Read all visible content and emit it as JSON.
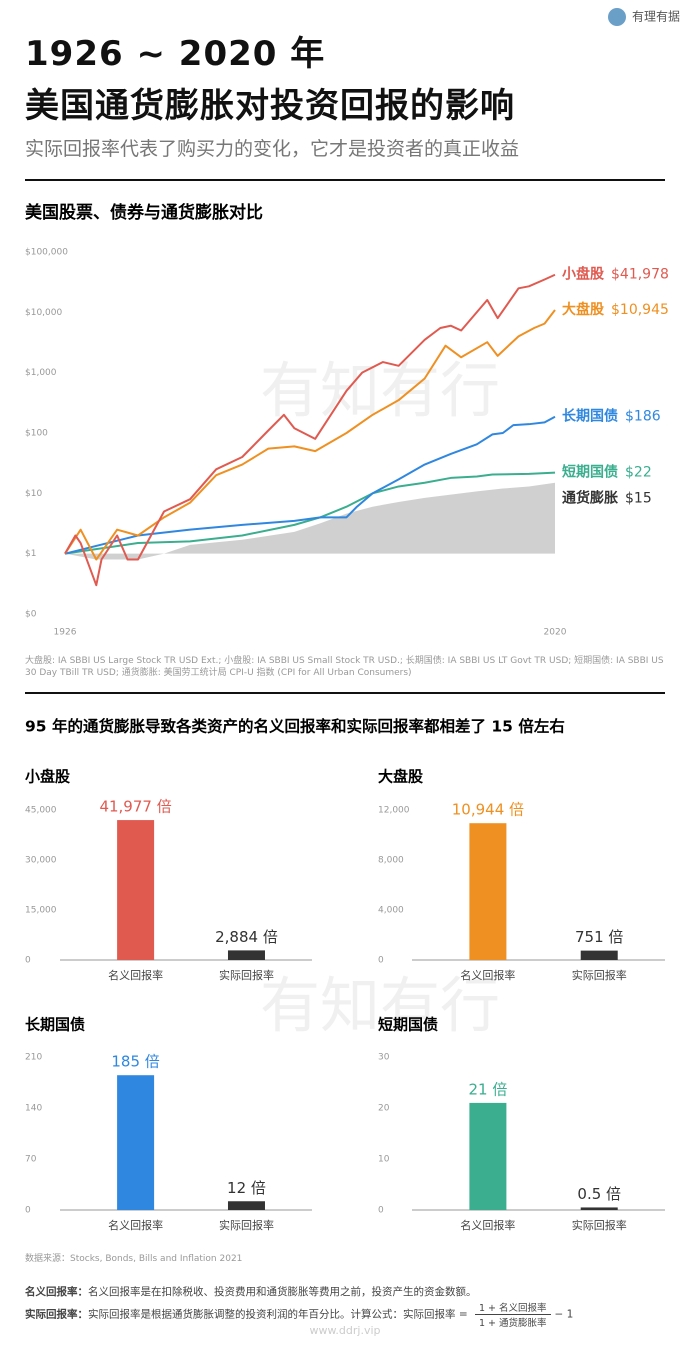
{
  "header": {
    "title_line1": "1926 ~ 2020 年",
    "title_line2": "美国通货膨胀对投资回报的影响",
    "subtitle": "实际回报率代表了购买力的变化，它才是投资者的真正收益",
    "logo": "有理有据"
  },
  "watermark": "有知有行",
  "chart_data": [
    {
      "type": "line",
      "title": "美国股票、债券与通货膨胀对比",
      "log_scale": true,
      "grid": false,
      "xlim": [
        1926,
        2020
      ],
      "xticks": [
        1926,
        2020
      ],
      "ylim": [
        0.1,
        100000
      ],
      "yticks": [
        {
          "value": 0.1,
          "label": "$0"
        },
        {
          "value": 1,
          "label": "$1"
        },
        {
          "value": 10,
          "label": "$10"
        },
        {
          "value": 100,
          "label": "$100"
        },
        {
          "value": 1000,
          "label": "$1,000"
        },
        {
          "value": 10000,
          "label": "$10,000"
        },
        {
          "value": 100000,
          "label": "$100,000"
        }
      ],
      "series": [
        {
          "name": "小盘股",
          "color": "#e05a50",
          "end_label": "$41,978",
          "x": [
            1926,
            1928,
            1929,
            1932,
            1933,
            1936,
            1938,
            1940,
            1945,
            1950,
            1955,
            1960,
            1965,
            1968,
            1970,
            1974,
            1980,
            1983,
            1987,
            1990,
            1995,
            1998,
            2000,
            2002,
            2007,
            2009,
            2013,
            2015,
            2018,
            2020
          ],
          "values": [
            1,
            2,
            1.5,
            0.3,
            0.8,
            2,
            0.8,
            0.8,
            5,
            8,
            25,
            40,
            110,
            200,
            120,
            80,
            500,
            1000,
            1500,
            1300,
            3500,
            5500,
            6000,
            5000,
            16000,
            8000,
            25000,
            27000,
            35000,
            41978
          ]
        },
        {
          "name": "大盘股",
          "color": "#ef9022",
          "end_label": "$10,945",
          "x": [
            1926,
            1929,
            1932,
            1936,
            1940,
            1945,
            1950,
            1955,
            1960,
            1965,
            1970,
            1974,
            1980,
            1985,
            1990,
            1995,
            1999,
            2002,
            2007,
            2009,
            2013,
            2016,
            2018,
            2020
          ],
          "values": [
            1,
            2.5,
            0.8,
            2.5,
            2,
            4,
            7,
            20,
            30,
            55,
            60,
            50,
            100,
            200,
            350,
            800,
            2800,
            1800,
            3200,
            1900,
            4000,
            5500,
            6500,
            10945
          ]
        },
        {
          "name": "长期国债",
          "color": "#2f87e0",
          "end_label": "$186",
          "x": [
            1926,
            1940,
            1950,
            1960,
            1970,
            1975,
            1980,
            1982,
            1985,
            1990,
            1995,
            2000,
            2005,
            2008,
            2010,
            2012,
            2015,
            2018,
            2020
          ],
          "values": [
            1,
            2,
            2.5,
            3,
            3.5,
            4,
            4,
            6,
            10,
            17,
            30,
            45,
            65,
            95,
            100,
            135,
            140,
            150,
            186
          ]
        },
        {
          "name": "短期国债",
          "color": "#3aae8e",
          "end_label": "$22",
          "x": [
            1926,
            1940,
            1950,
            1960,
            1970,
            1975,
            1980,
            1985,
            1990,
            1995,
            2000,
            2005,
            2008,
            2015,
            2020
          ],
          "values": [
            1,
            1.5,
            1.6,
            2,
            3,
            4,
            6,
            10,
            13,
            15,
            18,
            19,
            20.5,
            21,
            22
          ]
        },
        {
          "name": "通货膨胀",
          "color": "#d0d0d0",
          "area": true,
          "end_label": "$15",
          "x": [
            1926,
            1932,
            1940,
            1945,
            1950,
            1960,
            1970,
            1975,
            1980,
            1985,
            1990,
            1995,
            2000,
            2005,
            2010,
            2015,
            2020
          ],
          "values": [
            1,
            0.8,
            0.8,
            1,
            1.4,
            1.7,
            2.3,
            3.2,
            4.6,
            6,
            7.2,
            8.4,
            9.5,
            10.8,
            12,
            13,
            15
          ]
        }
      ],
      "note": "大盘股: IA SBBI US Large Stock TR USD Ext.; 小盘股: IA SBBI US Small Stock TR USD.; 长期国债: IA SBBI US LT Govt TR USD; 短期国债: IA SBBI US 30 Day TBill TR USD; 通货膨胀: 美国劳工统计局 CPI-U 指数 (CPI for All Urban Consumers)"
    },
    {
      "type": "bar",
      "title": "小盘股",
      "grid": false,
      "categories": [
        "名义回报率",
        "实际回报率"
      ],
      "values": [
        41977,
        2884
      ],
      "value_labels": [
        "41,977 倍",
        "2,884 倍"
      ],
      "colors": [
        "#e05a50",
        "#333333"
      ],
      "ylim": [
        0,
        45000
      ],
      "yticks": [
        0,
        {
          "value": 15000,
          "label": "15,000"
        },
        {
          "value": 30000,
          "label": "30,000"
        },
        {
          "value": 45000,
          "label": "45,000"
        }
      ]
    },
    {
      "type": "bar",
      "title": "大盘股",
      "grid": false,
      "categories": [
        "名义回报率",
        "实际回报率"
      ],
      "values": [
        10944,
        751
      ],
      "value_labels": [
        "10,944 倍",
        "751 倍"
      ],
      "colors": [
        "#ef9022",
        "#333333"
      ],
      "ylim": [
        0,
        12000
      ],
      "yticks": [
        0,
        {
          "value": 4000,
          "label": "4,000"
        },
        {
          "value": 8000,
          "label": "8,000"
        },
        {
          "value": 12000,
          "label": "12,000"
        }
      ]
    },
    {
      "type": "bar",
      "title": "长期国债",
      "grid": false,
      "categories": [
        "名义回报率",
        "实际回报率"
      ],
      "values": [
        185,
        12
      ],
      "value_labels": [
        "185 倍",
        "12 倍"
      ],
      "colors": [
        "#2f87e0",
        "#333333"
      ],
      "ylim": [
        0,
        210
      ],
      "yticks": [
        0,
        70,
        140,
        210
      ]
    },
    {
      "type": "bar",
      "title": "短期国债",
      "grid": false,
      "categories": [
        "名义回报率",
        "实际回报率"
      ],
      "values": [
        21,
        0.5
      ],
      "value_labels": [
        "21 倍",
        "0.5 倍"
      ],
      "colors": [
        "#3aae8e",
        "#333333"
      ],
      "ylim": [
        0,
        30
      ],
      "yticks": [
        0,
        10,
        20,
        30
      ]
    }
  ],
  "section_title": "95 年的通货膨胀导致各类资产的名义回报率和实际回报率都相差了 15 倍左右",
  "footer": {
    "source": "数据来源：Stocks, Bonds, Bills and Inflation 2021",
    "nominal_term": "名义回报率：",
    "nominal_def": "名义回报率是在扣除税收、投资费用和通货膨胀等费用之前，投资产生的资金数额。",
    "real_term": "实际回报率：",
    "real_def": "实际回报率是根据通货膨胀调整的投资利润的年百分比。计算公式：实际回报率 =",
    "formula_numerator": "1 + 名义回报率",
    "formula_denominator": "1 + 通货膨胀率",
    "formula_tail": "− 1",
    "website": "www.ddrj.vip"
  }
}
